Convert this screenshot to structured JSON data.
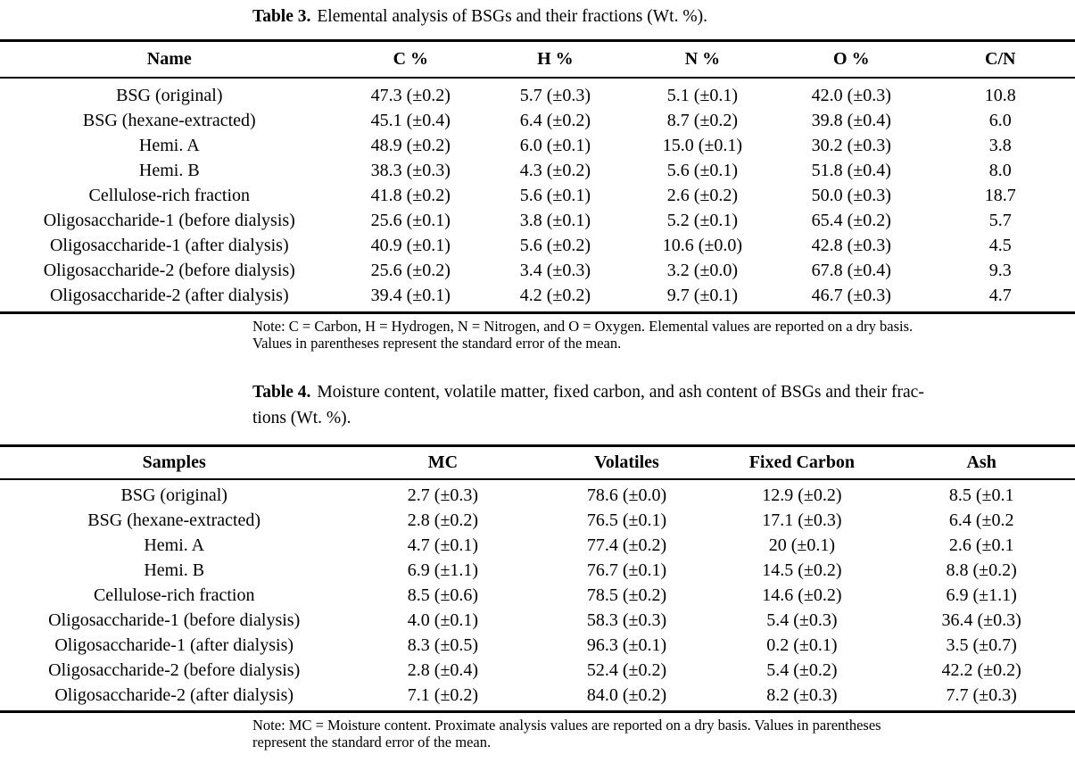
{
  "table3": {
    "caption": {
      "label": "Table 3.",
      "text": "Elemental analysis of BSGs and their fractions (Wt. %)."
    },
    "columns": [
      "Name",
      "C %",
      "H %",
      "N %",
      "O %",
      "C/N"
    ],
    "rows": [
      [
        "BSG (original)",
        "47.3 (±0.2)",
        "5.7 (±0.3)",
        "5.1 (±0.1)",
        "42.0 (±0.3)",
        "10.8"
      ],
      [
        "BSG (hexane-extracted)",
        "45.1 (±0.4)",
        "6.4 (±0.2)",
        "8.7 (±0.2)",
        "39.8 (±0.4)",
        "6.0"
      ],
      [
        "Hemi. A",
        "48.9 (±0.2)",
        "6.0 (±0.1)",
        "15.0 (±0.1)",
        "30.2 (±0.3)",
        "3.8"
      ],
      [
        "Hemi. B",
        "38.3 (±0.3)",
        "4.3 (±0.2)",
        "5.6 (±0.1)",
        "51.8 (±0.4)",
        "8.0"
      ],
      [
        "Cellulose-rich fraction",
        "41.8 (±0.2)",
        "5.6 (±0.1)",
        "2.6 (±0.2)",
        "50.0 (±0.3)",
        "18.7"
      ],
      [
        "Oligosaccharide-1 (before dialysis)",
        "25.6 (±0.1)",
        "3.8 (±0.1)",
        "5.2 (±0.1)",
        "65.4 (±0.2)",
        "5.7"
      ],
      [
        "Oligosaccharide-1 (after dialysis)",
        "40.9 (±0.1)",
        "5.6 (±0.2)",
        "10.6 (±0.0)",
        "42.8 (±0.3)",
        "4.5"
      ],
      [
        "Oligosaccharide-2 (before dialysis)",
        "25.6 (±0.2)",
        "3.4 (±0.3)",
        "3.2 (±0.0)",
        "67.8 (±0.4)",
        "9.3"
      ],
      [
        "Oligosaccharide-2 (after dialysis)",
        "39.4 (±0.1)",
        "4.2 (±0.2)",
        "9.7 (±0.1)",
        "46.7 (±0.3)",
        "4.7"
      ]
    ],
    "note": {
      "line1": "Note: C = Carbon, H = Hydrogen, N = Nitrogen, and O = Oxygen. Elemental values are reported on a dry basis.",
      "line2": "Values in parentheses represent the standard error of the mean."
    }
  },
  "table4": {
    "caption": {
      "label": "Table 4.",
      "line1_rest": "Moisture content, volatile matter, fixed carbon, and ash content of BSGs and their frac-",
      "line2": "tions (Wt. %)."
    },
    "columns": [
      "Samples",
      "MC",
      "Volatiles",
      "Fixed Carbon",
      "Ash"
    ],
    "rows": [
      [
        "BSG (original)",
        "2.7 (±0.3)",
        "78.6 (±0.0)",
        "12.9 (±0.2)",
        "8.5 (±0.1"
      ],
      [
        "BSG (hexane-extracted)",
        "2.8 (±0.2)",
        "76.5 (±0.1)",
        "17.1 (±0.3)",
        "6.4 (±0.2"
      ],
      [
        "Hemi. A",
        "4.7 (±0.1)",
        "77.4 (±0.2)",
        "20 (±0.1)",
        "2.6 (±0.1"
      ],
      [
        "Hemi. B",
        "6.9 (±1.1)",
        "76.7 (±0.1)",
        "14.5 (±0.2)",
        "8.8 (±0.2)"
      ],
      [
        "Cellulose-rich fraction",
        "8.5 (±0.6)",
        "78.5 (±0.2)",
        "14.6 (±0.2)",
        "6.9 (±1.1)"
      ],
      [
        "Oligosaccharide-1 (before dialysis)",
        "4.0 (±0.1)",
        "58.3 (±0.3)",
        "5.4 (±0.3)",
        "36.4 (±0.3)"
      ],
      [
        "Oligosaccharide-1 (after dialysis)",
        "8.3 (±0.5)",
        "96.3 (±0.1)",
        "0.2 (±0.1)",
        "3.5 (±0.7)"
      ],
      [
        "Oligosaccharide-2 (before dialysis)",
        "2.8 (±0.4)",
        "52.4 (±0.2)",
        "5.4 (±0.2)",
        "42.2 (±0.2)"
      ],
      [
        "Oligosaccharide-2 (after dialysis)",
        "7.1 (±0.2)",
        "84.0 (±0.2)",
        "8.2 (±0.3)",
        "7.7 (±0.3)"
      ]
    ],
    "note": {
      "line1": "Note: MC = Moisture content. Proximate analysis values are reported on a dry basis. Values in parentheses",
      "line2": "represent the standard error of the mean."
    }
  }
}
